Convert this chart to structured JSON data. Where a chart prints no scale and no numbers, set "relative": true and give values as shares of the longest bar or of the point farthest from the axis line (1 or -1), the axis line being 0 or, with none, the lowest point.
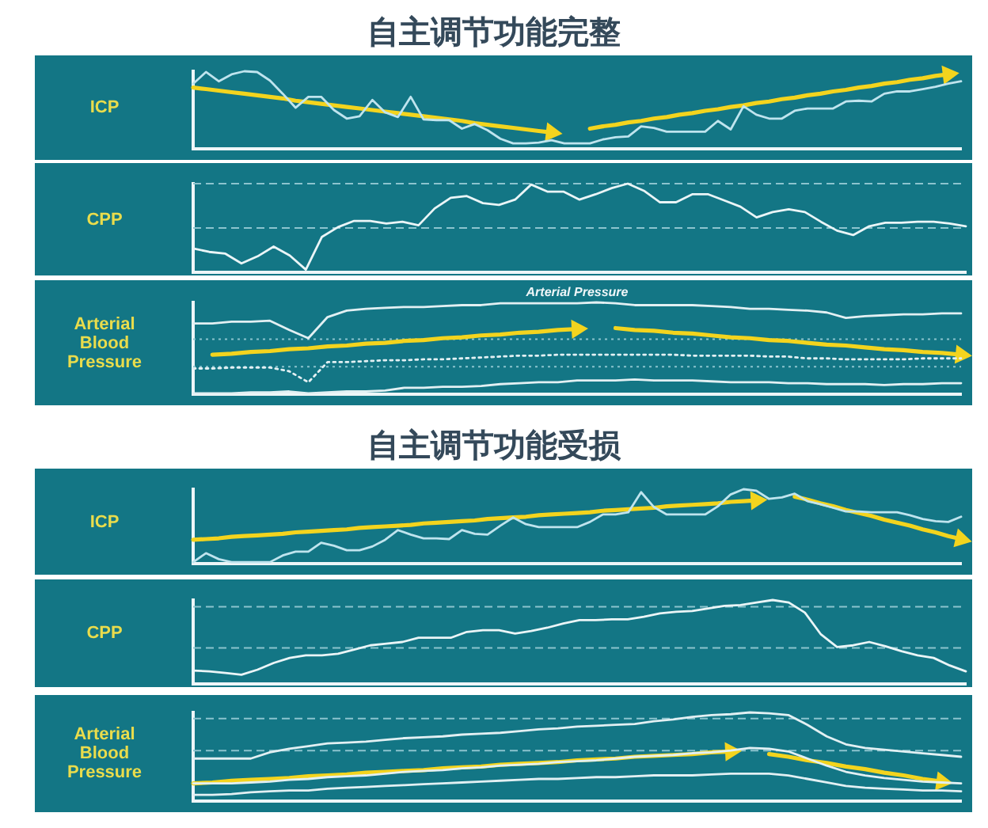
{
  "chart_data": [
    {
      "type": "line",
      "title": "自主调节功能完整",
      "ylabel": "ICP",
      "relative": true,
      "tick_labels": false,
      "categories": [
        null,
        null,
        null,
        null,
        null,
        null,
        null,
        null,
        null,
        null,
        null,
        null,
        null,
        null,
        null,
        null,
        null,
        null,
        null,
        null,
        null,
        null,
        null,
        null,
        null,
        null,
        null,
        null,
        null,
        null,
        null,
        null,
        null,
        null,
        null,
        null,
        null,
        null,
        null,
        null,
        null,
        null,
        null,
        null,
        null,
        null,
        null,
        null,
        null,
        null,
        null,
        null,
        null,
        null,
        null,
        null,
        null,
        null,
        null,
        null,
        null
      ],
      "series": [
        {
          "color": "#bfe4ee",
          "values": [
            0.84,
            0.99,
            0.87,
            0.96,
            1.0,
            0.99,
            0.88,
            0.71,
            0.53,
            0.67,
            0.67,
            0.5,
            0.39,
            0.42,
            0.63,
            0.47,
            0.41,
            0.67,
            0.38,
            0.37,
            0.37,
            0.26,
            0.32,
            0.24,
            0.13,
            0.07,
            0.07,
            0.08,
            0.11,
            0.07,
            0.07,
            0.07,
            0.12,
            0.15,
            0.16,
            0.29,
            0.27,
            0.22,
            0.22,
            0.22,
            0.22,
            0.36,
            0.25,
            0.55,
            0.44,
            0.39,
            0.39,
            0.49,
            0.52,
            0.52,
            0.52,
            0.61,
            0.62,
            0.61,
            0.71,
            0.74,
            0.74,
            0.77,
            0.8,
            0.84,
            0.87
          ]
        },
        {
          "color": "#f3d41e",
          "values": [
            0.79,
            0.77,
            0.75,
            0.73,
            0.71,
            0.69,
            0.67,
            0.65,
            0.62,
            0.6,
            0.58,
            0.56,
            0.54,
            0.52,
            0.5,
            0.48,
            0.46,
            0.44,
            0.42,
            0.4,
            0.38,
            0.36,
            0.33,
            0.31,
            0.29,
            0.27,
            0.25,
            0.23,
            0.21,
            null,
            null,
            null,
            null,
            null,
            null,
            null,
            null,
            null,
            null,
            null,
            null,
            null,
            null,
            null,
            null,
            null,
            null,
            null,
            null,
            null,
            null,
            null,
            null,
            null,
            null,
            null,
            null,
            null,
            null,
            null,
            null
          ]
        },
        {
          "color": "#f3d41e",
          "values": [
            null,
            null,
            null,
            null,
            null,
            null,
            null,
            null,
            null,
            null,
            null,
            null,
            null,
            null,
            null,
            null,
            null,
            null,
            null,
            null,
            null,
            null,
            null,
            null,
            null,
            null,
            null,
            null,
            null,
            null,
            null,
            0.26,
            0.29,
            0.31,
            0.34,
            0.36,
            0.39,
            0.41,
            0.44,
            0.46,
            0.49,
            0.51,
            0.54,
            0.56,
            0.59,
            0.61,
            0.64,
            0.66,
            0.69,
            0.71,
            0.74,
            0.76,
            0.79,
            0.81,
            0.84,
            0.86,
            0.89,
            0.91,
            0.94,
            0.96,
            null
          ]
        }
      ]
    },
    {
      "type": "line",
      "ylabel": "CPP",
      "relative": true,
      "tick_labels": false,
      "categories": [
        null,
        null,
        null,
        null,
        null,
        null,
        null,
        null,
        null,
        null,
        null,
        null,
        null,
        null,
        null,
        null,
        null,
        null,
        null,
        null,
        null,
        null,
        null,
        null,
        null,
        null,
        null,
        null,
        null,
        null,
        null,
        null,
        null,
        null,
        null,
        null,
        null,
        null,
        null,
        null,
        null,
        null,
        null,
        null,
        null,
        null,
        null,
        null,
        null
      ],
      "ref_lines": [
        {
          "axis": "y",
          "value": 1.0,
          "color": "#8cc4ce",
          "line_style": "dashed"
        },
        {
          "axis": "y",
          "value": 0.5,
          "color": "#8cc4ce",
          "line_style": "dashed"
        }
      ],
      "series": [
        {
          "color": "#eaf5f7",
          "values": [
            0.27,
            0.23,
            0.21,
            0.1,
            0.18,
            0.29,
            0.19,
            0.03,
            0.4,
            0.51,
            0.58,
            0.58,
            0.55,
            0.57,
            0.53,
            0.72,
            0.84,
            0.86,
            0.78,
            0.76,
            0.82,
            0.99,
            0.91,
            0.91,
            0.82,
            0.88,
            0.95,
            1.0,
            0.92,
            0.79,
            0.79,
            0.88,
            0.88,
            0.81,
            0.74,
            0.62,
            0.68,
            0.71,
            0.68,
            0.57,
            0.47,
            0.42,
            0.52,
            0.56,
            0.56,
            0.57,
            0.57,
            0.55,
            0.52
          ]
        }
      ]
    },
    {
      "type": "line",
      "ylabel": "Arterial Blood Pressure",
      "relative": true,
      "tick_labels": false,
      "annotations": [
        "Arterial Pressure"
      ],
      "categories": [
        null,
        null,
        null,
        null,
        null,
        null,
        null,
        null,
        null,
        null,
        null,
        null,
        null,
        null,
        null,
        null,
        null,
        null,
        null,
        null,
        null,
        null,
        null,
        null,
        null,
        null,
        null,
        null,
        null,
        null,
        null,
        null,
        null,
        null,
        null,
        null,
        null,
        null,
        null,
        null,
        null
      ],
      "ref_lines": [
        {
          "axis": "y",
          "value": 0.6,
          "color": "#8cc4ce",
          "line_style": "dotted"
        },
        {
          "axis": "y",
          "value": 0.3,
          "color": "#8cc4ce",
          "line_style": "dotted"
        }
      ],
      "series": [
        {
          "color": "#e2f0f3",
          "values": [
            0.77,
            0.77,
            0.79,
            0.79,
            0.8,
            0.7,
            0.61,
            0.84,
            0.91,
            0.93,
            0.94,
            0.95,
            0.95,
            0.96,
            0.97,
            0.97,
            0.99,
            0.99,
            0.99,
            0.99,
            0.99,
            1.0,
            0.99,
            0.97,
            0.97,
            0.97,
            0.97,
            0.96,
            0.95,
            0.93,
            0.93,
            0.92,
            0.91,
            0.89,
            0.83,
            0.85,
            0.86,
            0.87,
            0.87,
            0.88,
            0.88
          ]
        },
        {
          "color": "#e2f0f3",
          "line_style": "dotted",
          "values": [
            0.28,
            0.28,
            0.29,
            0.29,
            0.29,
            0.25,
            0.13,
            0.35,
            0.35,
            0.36,
            0.37,
            0.37,
            0.38,
            0.38,
            0.39,
            0.4,
            0.41,
            0.42,
            0.42,
            0.43,
            0.43,
            0.43,
            0.43,
            0.43,
            0.43,
            0.43,
            0.42,
            0.42,
            0.42,
            0.42,
            0.41,
            0.41,
            0.39,
            0.39,
            0.38,
            0.38,
            0.38,
            0.38,
            0.39,
            0.39,
            0.39
          ]
        },
        {
          "color": "#e2f0f3",
          "values": [
            0.01,
            0.01,
            0.01,
            0.02,
            0.02,
            0.03,
            0.01,
            0.02,
            0.03,
            0.03,
            0.04,
            0.07,
            0.07,
            0.08,
            0.08,
            0.09,
            0.11,
            0.12,
            0.13,
            0.13,
            0.15,
            0.15,
            0.15,
            0.16,
            0.15,
            0.15,
            0.15,
            0.14,
            0.13,
            0.13,
            0.13,
            0.12,
            0.12,
            0.11,
            0.11,
            0.11,
            0.1,
            0.11,
            0.11,
            0.12,
            0.12
          ]
        },
        {
          "color": "#f3d41e",
          "values": [
            null,
            0.43,
            0.44,
            0.46,
            0.47,
            0.49,
            0.5,
            0.52,
            0.53,
            0.55,
            0.56,
            0.58,
            0.59,
            0.61,
            0.62,
            0.64,
            0.65,
            0.67,
            0.68,
            0.7,
            0.71,
            null,
            null,
            null,
            null,
            null,
            null,
            null,
            null,
            null,
            null,
            null,
            null,
            null,
            null,
            null,
            null,
            null,
            null,
            null,
            null
          ]
        },
        {
          "color": "#f3d41e",
          "values": [
            null,
            null,
            null,
            null,
            null,
            null,
            null,
            null,
            null,
            null,
            null,
            null,
            null,
            null,
            null,
            null,
            null,
            null,
            null,
            null,
            null,
            null,
            0.72,
            0.7,
            0.69,
            0.67,
            0.66,
            0.64,
            0.62,
            0.61,
            0.59,
            0.58,
            0.56,
            0.54,
            0.53,
            0.51,
            0.49,
            0.48,
            0.46,
            0.45,
            0.43
          ]
        }
      ]
    },
    {
      "type": "line",
      "title": "自主调节功能受损",
      "ylabel": "ICP",
      "relative": true,
      "tick_labels": false,
      "categories": [
        null,
        null,
        null,
        null,
        null,
        null,
        null,
        null,
        null,
        null,
        null,
        null,
        null,
        null,
        null,
        null,
        null,
        null,
        null,
        null,
        null,
        null,
        null,
        null,
        null,
        null,
        null,
        null,
        null,
        null,
        null,
        null,
        null,
        null,
        null,
        null,
        null,
        null,
        null,
        null,
        null,
        null,
        null,
        null,
        null,
        null,
        null,
        null,
        null,
        null,
        null,
        null,
        null,
        null,
        null,
        null,
        null,
        null,
        null,
        null,
        null
      ],
      "series": [
        {
          "color": "#bfe4ee",
          "values": [
            0.02,
            0.14,
            0.06,
            0.02,
            0.02,
            0.02,
            0.02,
            0.11,
            0.16,
            0.16,
            0.28,
            0.24,
            0.18,
            0.18,
            0.23,
            0.32,
            0.45,
            0.39,
            0.34,
            0.34,
            0.33,
            0.45,
            0.4,
            0.39,
            0.51,
            0.62,
            0.53,
            0.49,
            0.49,
            0.49,
            0.49,
            0.56,
            0.66,
            0.66,
            0.69,
            0.96,
            0.76,
            0.66,
            0.66,
            0.66,
            0.66,
            0.77,
            0.93,
            1.0,
            0.98,
            0.87,
            0.89,
            0.94,
            0.84,
            0.8,
            0.75,
            0.7,
            0.7,
            0.69,
            0.69,
            0.69,
            0.65,
            0.6,
            0.57,
            0.56,
            0.63
          ]
        },
        {
          "color": "#f3d41e",
          "values": [
            0.32,
            0.33,
            0.34,
            0.36,
            0.37,
            0.38,
            0.39,
            0.4,
            0.42,
            0.43,
            0.44,
            0.45,
            0.46,
            0.48,
            0.49,
            0.5,
            0.51,
            0.52,
            0.54,
            0.55,
            0.56,
            0.57,
            0.58,
            0.6,
            0.61,
            0.62,
            0.63,
            0.65,
            0.66,
            0.67,
            0.68,
            0.69,
            0.71,
            0.72,
            0.73,
            0.74,
            0.75,
            0.77,
            0.78,
            0.79,
            0.8,
            0.81,
            0.83,
            0.84,
            0.85,
            null,
            null,
            null,
            null,
            null,
            null,
            null,
            null,
            null,
            null,
            null,
            null,
            null,
            null,
            null,
            null
          ]
        },
        {
          "color": "#f3d41e",
          "values": [
            null,
            null,
            null,
            null,
            null,
            null,
            null,
            null,
            null,
            null,
            null,
            null,
            null,
            null,
            null,
            null,
            null,
            null,
            null,
            null,
            null,
            null,
            null,
            null,
            null,
            null,
            null,
            null,
            null,
            null,
            null,
            null,
            null,
            null,
            null,
            null,
            null,
            null,
            null,
            null,
            null,
            null,
            null,
            null,
            null,
            null,
            null,
            0.9,
            0.86,
            0.81,
            0.77,
            0.72,
            0.68,
            0.64,
            0.59,
            0.55,
            0.51,
            0.46,
            0.42,
            0.37,
            0.33
          ]
        }
      ]
    },
    {
      "type": "line",
      "ylabel": "CPP",
      "relative": true,
      "tick_labels": false,
      "categories": [
        null,
        null,
        null,
        null,
        null,
        null,
        null,
        null,
        null,
        null,
        null,
        null,
        null,
        null,
        null,
        null,
        null,
        null,
        null,
        null,
        null,
        null,
        null,
        null,
        null,
        null,
        null,
        null,
        null,
        null,
        null,
        null,
        null,
        null,
        null,
        null,
        null,
        null,
        null,
        null,
        null,
        null,
        null,
        null,
        null,
        null,
        null,
        null,
        null
      ],
      "ref_lines": [
        {
          "axis": "y",
          "value": 0.92,
          "color": "#8cc4ce",
          "line_style": "dashed"
        },
        {
          "axis": "y",
          "value": 0.43,
          "color": "#8cc4ce",
          "line_style": "dashed"
        }
      ],
      "series": [
        {
          "color": "#eaf5f7",
          "values": [
            0.16,
            0.15,
            0.13,
            0.11,
            0.17,
            0.25,
            0.31,
            0.34,
            0.34,
            0.36,
            0.41,
            0.46,
            0.48,
            0.5,
            0.55,
            0.55,
            0.55,
            0.62,
            0.64,
            0.64,
            0.6,
            0.63,
            0.67,
            0.72,
            0.76,
            0.76,
            0.77,
            0.77,
            0.8,
            0.84,
            0.86,
            0.87,
            0.9,
            0.93,
            0.94,
            0.97,
            1.0,
            0.97,
            0.85,
            0.59,
            0.44,
            0.46,
            0.5,
            0.45,
            0.39,
            0.34,
            0.31,
            0.22,
            0.15
          ]
        }
      ]
    },
    {
      "type": "line",
      "ylabel": "Arterial Blood Pressure",
      "relative": true,
      "tick_labels": false,
      "categories": [
        null,
        null,
        null,
        null,
        null,
        null,
        null,
        null,
        null,
        null,
        null,
        null,
        null,
        null,
        null,
        null,
        null,
        null,
        null,
        null,
        null,
        null,
        null,
        null,
        null,
        null,
        null,
        null,
        null,
        null,
        null,
        null,
        null,
        null,
        null,
        null,
        null,
        null,
        null,
        null,
        null
      ],
      "ref_lines": [
        {
          "axis": "y",
          "value": 0.93,
          "color": "#8cc4ce",
          "line_style": "dashed"
        },
        {
          "axis": "y",
          "value": 0.57,
          "color": "#8cc4ce",
          "line_style": "dashed"
        }
      ],
      "series": [
        {
          "color": "#e2f0f3",
          "values": [
            0.48,
            0.48,
            0.48,
            0.48,
            0.55,
            0.59,
            0.62,
            0.65,
            0.66,
            0.67,
            0.69,
            0.71,
            0.72,
            0.73,
            0.75,
            0.76,
            0.77,
            0.79,
            0.81,
            0.82,
            0.84,
            0.85,
            0.86,
            0.87,
            0.9,
            0.92,
            0.95,
            0.97,
            0.98,
            1.0,
            0.99,
            0.97,
            0.86,
            0.73,
            0.64,
            0.6,
            0.58,
            0.56,
            0.54,
            0.52,
            0.5
          ]
        },
        {
          "color": "#e2f0f3",
          "values": [
            0.2,
            0.2,
            0.2,
            0.21,
            0.22,
            0.24,
            0.25,
            0.27,
            0.28,
            0.29,
            0.31,
            0.33,
            0.34,
            0.35,
            0.37,
            0.38,
            0.4,
            0.41,
            0.42,
            0.44,
            0.45,
            0.46,
            0.48,
            0.5,
            0.51,
            0.52,
            0.54,
            0.55,
            0.57,
            0.6,
            0.59,
            0.56,
            0.48,
            0.4,
            0.33,
            0.29,
            0.26,
            0.24,
            0.22,
            0.21,
            0.2
          ]
        },
        {
          "color": "#e2f0f3",
          "values": [
            0.07,
            0.07,
            0.08,
            0.1,
            0.11,
            0.12,
            0.12,
            0.14,
            0.15,
            0.16,
            0.17,
            0.18,
            0.19,
            0.2,
            0.21,
            0.22,
            0.23,
            0.24,
            0.25,
            0.25,
            0.26,
            0.27,
            0.27,
            0.28,
            0.29,
            0.29,
            0.29,
            0.3,
            0.31,
            0.31,
            0.31,
            0.29,
            0.25,
            0.21,
            0.17,
            0.15,
            0.14,
            0.13,
            0.12,
            0.12,
            0.11
          ]
        },
        {
          "color": "#f3d41e",
          "values": [
            0.2,
            0.21,
            0.23,
            0.24,
            0.25,
            0.26,
            0.28,
            0.29,
            0.3,
            0.32,
            0.33,
            0.34,
            0.35,
            0.37,
            0.38,
            0.39,
            0.41,
            0.42,
            0.43,
            0.44,
            0.46,
            0.47,
            0.48,
            0.5,
            0.51,
            0.52,
            0.53,
            0.55,
            0.56,
            null,
            null,
            null,
            null,
            null,
            null,
            null,
            null,
            null,
            null,
            null,
            null
          ]
        },
        {
          "color": "#f3d41e",
          "values": [
            null,
            null,
            null,
            null,
            null,
            null,
            null,
            null,
            null,
            null,
            null,
            null,
            null,
            null,
            null,
            null,
            null,
            null,
            null,
            null,
            null,
            null,
            null,
            null,
            null,
            null,
            null,
            null,
            null,
            null,
            0.53,
            0.5,
            0.46,
            0.43,
            0.39,
            0.36,
            0.32,
            0.29,
            0.25,
            0.22,
            null
          ]
        }
      ]
    }
  ]
}
